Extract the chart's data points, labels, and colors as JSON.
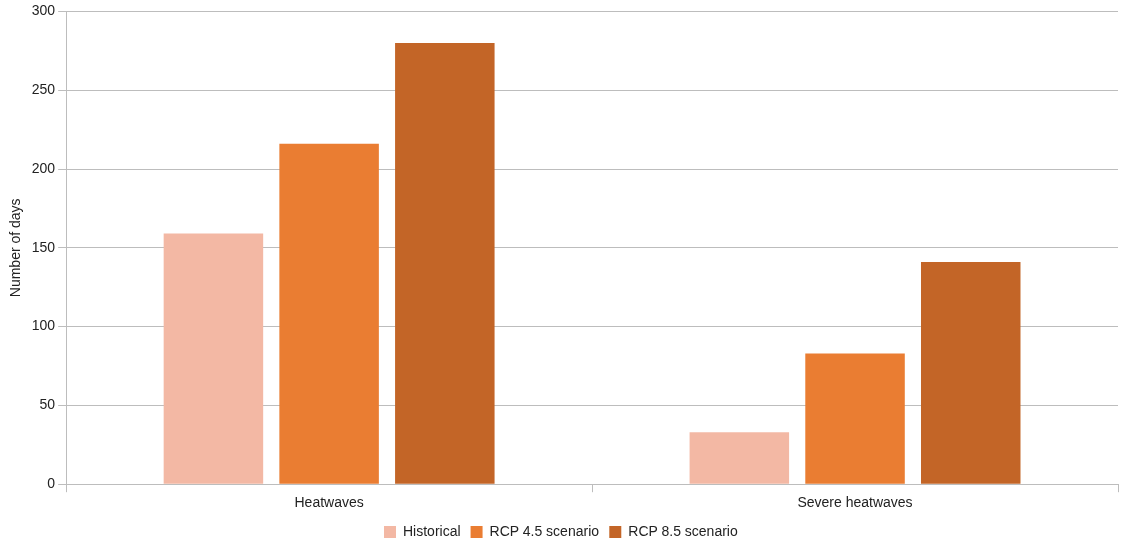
{
  "chart_data": {
    "type": "bar",
    "ylabel": "Number of days",
    "categories": [
      "Heatwaves",
      "Severe heatwaves"
    ],
    "series": [
      {
        "name": "Historical",
        "color": "#f3b8a4",
        "values": [
          159,
          33
        ]
      },
      {
        "name": "RCP 4.5 scenario",
        "color": "#ea7d32",
        "values": [
          216,
          83
        ]
      },
      {
        "name": "RCP 8.5 scenario",
        "color": "#c36527",
        "values": [
          280,
          141
        ]
      }
    ],
    "ylim": [
      0,
      300
    ],
    "yticks": [
      0,
      50,
      100,
      150,
      200,
      250,
      300
    ],
    "grid": "y",
    "legend": "bottom"
  }
}
